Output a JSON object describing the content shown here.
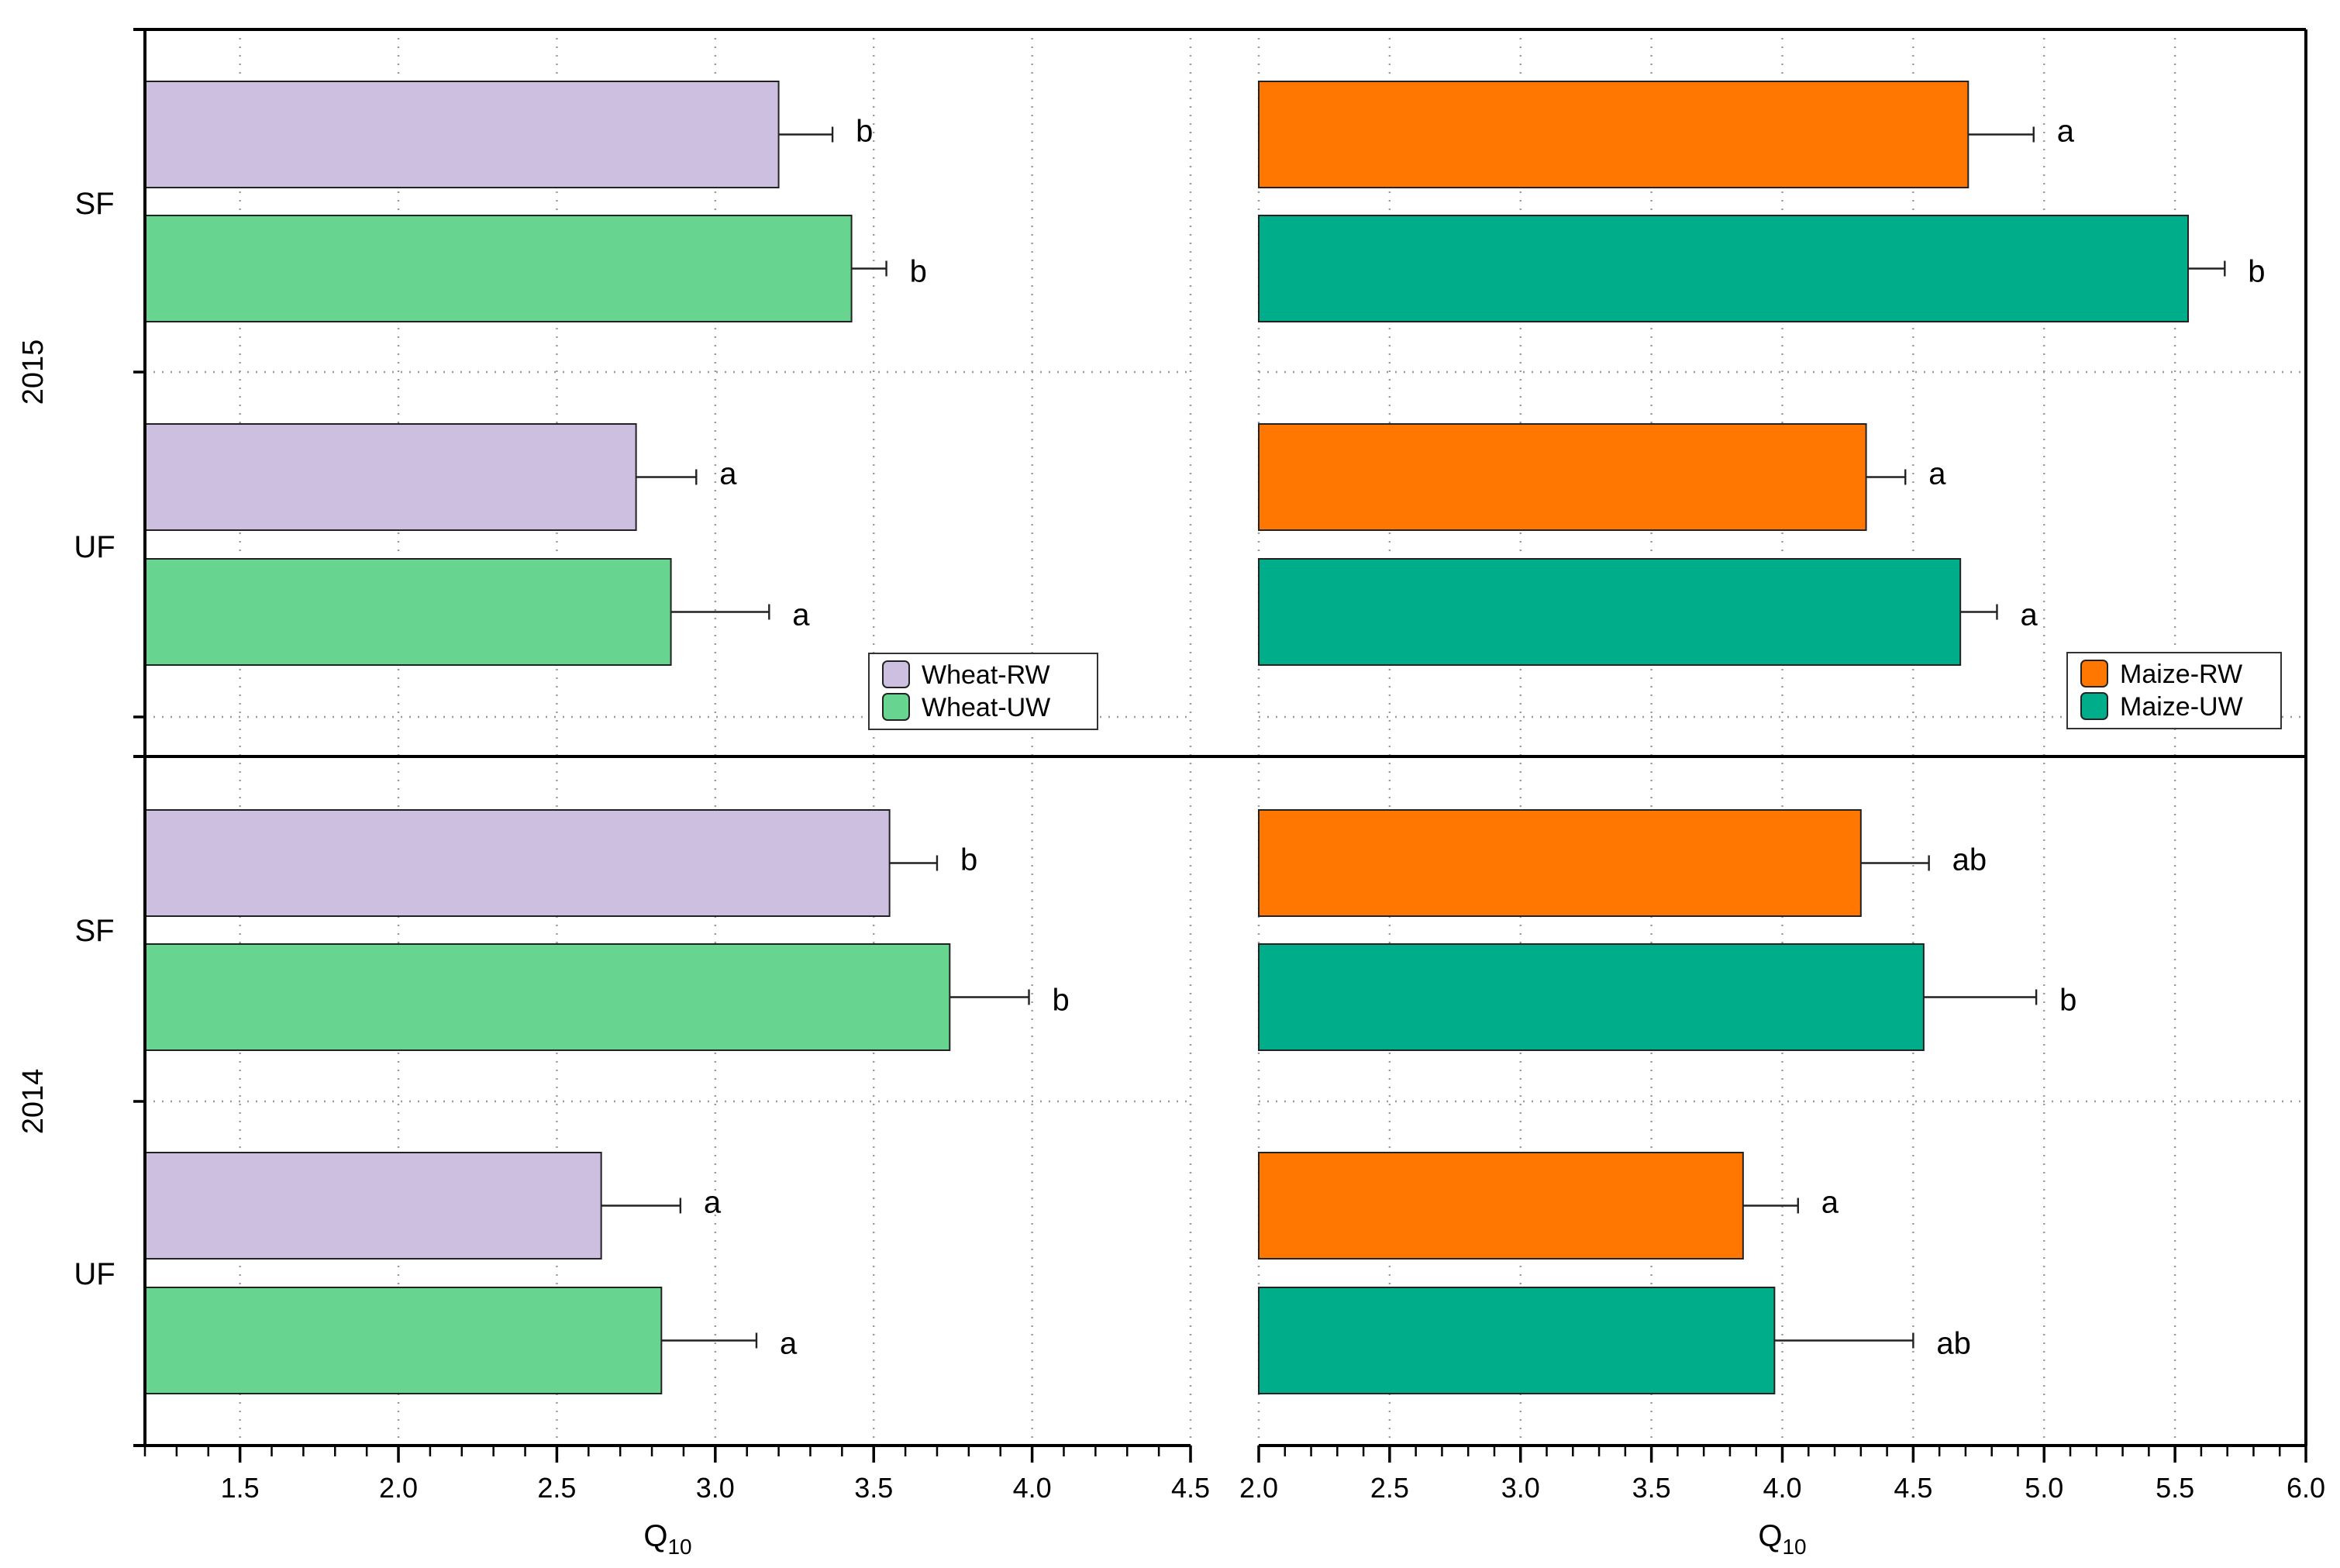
{
  "chart_data": [
    {
      "type": "bar",
      "orientation": "horizontal",
      "panel": "wheat",
      "xlabel": "Q",
      "xlabel_sub": "10",
      "xlim": [
        1.2,
        4.5
      ],
      "xticks": [
        "1.5",
        "2.0",
        "2.5",
        "3.0",
        "3.5",
        "4.0",
        "4.5"
      ],
      "year_labels": [
        "2015",
        "2014"
      ],
      "category_labels": [
        "SF",
        "UF",
        "SF",
        "UF"
      ],
      "legend": {
        "position": "bottom-right of 2015 block",
        "entries": [
          "Wheat-RW",
          "Wheat-UW"
        ]
      },
      "colors": {
        "Wheat-RW": "#cdbfe0",
        "Wheat-UW": "#67d490"
      },
      "series": [
        {
          "name": "Wheat-RW",
          "groups": [
            "2015 SF",
            "2015 UF",
            "2014 SF",
            "2014 UF"
          ],
          "values": [
            3.2,
            2.75,
            3.55,
            2.64
          ],
          "errors": [
            0.17,
            0.19,
            0.15,
            0.25
          ],
          "letters": [
            "b",
            "a",
            "b",
            "a"
          ]
        },
        {
          "name": "Wheat-UW",
          "groups": [
            "2015 SF",
            "2015 UF",
            "2014 SF",
            "2014 UF"
          ],
          "values": [
            3.43,
            2.86,
            3.74,
            2.83
          ],
          "errors": [
            0.11,
            0.31,
            0.25,
            0.3
          ],
          "letters": [
            "b",
            "a",
            "b",
            "a"
          ]
        }
      ]
    },
    {
      "type": "bar",
      "orientation": "horizontal",
      "panel": "maize",
      "xlabel": "Q",
      "xlabel_sub": "10",
      "xlim": [
        2.0,
        6.0
      ],
      "xticks": [
        "2.0",
        "2.5",
        "3.0",
        "3.5",
        "4.0",
        "4.5",
        "5.0",
        "5.5",
        "6.0"
      ],
      "legend": {
        "position": "bottom-right of 2015 block",
        "entries": [
          "Maize-RW",
          "Maize-UW"
        ]
      },
      "colors": {
        "Maize-RW": "#ff7600",
        "Maize-UW": "#00ad8b"
      },
      "series": [
        {
          "name": "Maize-RW",
          "groups": [
            "2015 SF",
            "2015 UF",
            "2014 SF",
            "2014 UF"
          ],
          "values": [
            4.71,
            4.32,
            4.3,
            3.85
          ],
          "errors": [
            0.25,
            0.15,
            0.26,
            0.21
          ],
          "letters": [
            "a",
            "a",
            "ab",
            "a"
          ]
        },
        {
          "name": "Maize-UW",
          "groups": [
            "2015 SF",
            "2015 UF",
            "2014 SF",
            "2014 UF"
          ],
          "values": [
            5.55,
            4.68,
            4.54,
            3.97
          ],
          "errors": [
            0.14,
            0.14,
            0.43,
            0.53
          ],
          "letters": [
            "b",
            "a",
            "b",
            "ab"
          ]
        }
      ]
    }
  ]
}
